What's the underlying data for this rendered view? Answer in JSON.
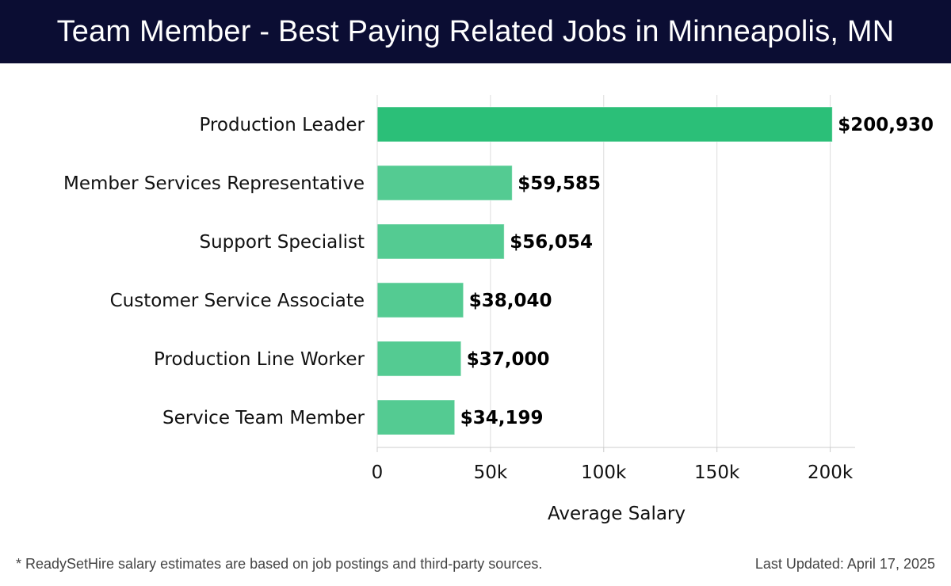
{
  "header": {
    "title": "Team Member - Best Paying Related Jobs in Minneapolis, MN"
  },
  "footer": {
    "note": "* ReadySetHire salary estimates are based on job postings and third-party sources.",
    "updated": "Last Updated: April 17, 2025"
  },
  "chart_data": {
    "type": "bar",
    "orientation": "horizontal",
    "categories": [
      "Production Leader",
      "Member Services Representative",
      "Support Specialist",
      "Customer Service Associate",
      "Production Line Worker",
      "Service Team Member"
    ],
    "values": [
      200930,
      59585,
      56054,
      38040,
      37000,
      34199
    ],
    "value_labels": [
      "$200,930",
      "$59,585",
      "$56,054",
      "$38,040",
      "$37,000",
      "$34,199"
    ],
    "xlabel": "Average Salary",
    "ylabel": "",
    "xlim": [
      0,
      211000
    ],
    "xticks": [
      0,
      50000,
      100000,
      150000,
      200000
    ],
    "xtick_labels": [
      "0",
      "50k",
      "100k",
      "150k",
      "200k"
    ],
    "grid": true,
    "colors": {
      "highlight": "#2bbf78",
      "bar": "#54cb92",
      "grid": "#dddddd",
      "axis": "#cccccc"
    }
  }
}
